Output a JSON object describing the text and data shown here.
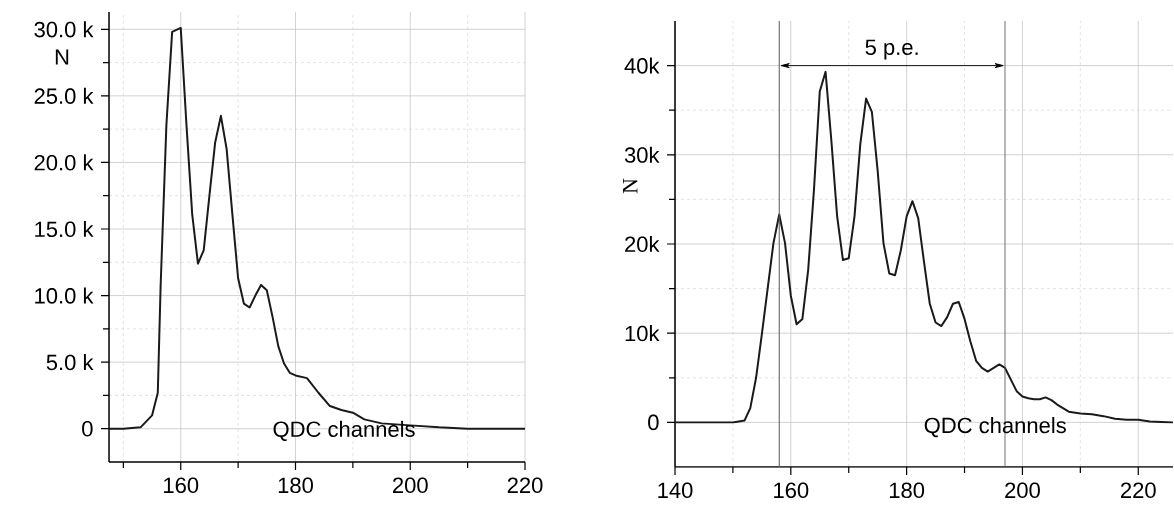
{
  "chart_data": [
    {
      "type": "line",
      "xlabel": "QDC channels",
      "ylabel": "N",
      "grid": true,
      "xlim": [
        147.5,
        220
      ],
      "ylim": [
        -2500,
        31300
      ],
      "xticks": [
        {
          "value": 150,
          "label": null
        },
        160,
        {
          "value": 170,
          "label": null
        },
        180,
        {
          "value": 190,
          "label": null
        },
        200,
        {
          "value": 210,
          "label": null
        },
        220
      ],
      "yticks": [
        0,
        {
          "value": 2500,
          "label": null
        },
        {
          "value": 5000,
          "label": "5.0 k"
        },
        {
          "value": 7500,
          "label": null
        },
        {
          "value": 10000,
          "label": "10.0 k"
        },
        {
          "value": 12500,
          "label": null
        },
        {
          "value": 15000,
          "label": "15.0 k"
        },
        {
          "value": 17500,
          "label": null
        },
        {
          "value": 20000,
          "label": "20.0 k"
        },
        {
          "value": 22500,
          "label": null
        },
        {
          "value": 25000,
          "label": "25.0 k"
        },
        {
          "value": 27500,
          "label": null
        },
        {
          "value": 30000,
          "label": "30.0 k"
        }
      ],
      "series": [
        {
          "color": "#1a1a1a",
          "x": [
            147.5,
            150,
            153,
            155,
            156,
            156.5,
            157.5,
            158.5,
            160,
            161,
            162,
            163,
            164,
            165,
            166,
            167,
            168,
            169,
            170,
            171,
            172,
            173,
            174,
            175,
            176,
            177,
            178,
            179,
            180,
            182,
            184,
            186,
            188,
            190,
            192,
            195,
            200,
            205,
            210,
            220
          ],
          "values": [
            0,
            0,
            100,
            1000,
            2700,
            10800,
            22800,
            29800,
            30100,
            22800,
            16100,
            12400,
            13400,
            17500,
            21500,
            23500,
            21000,
            16100,
            11300,
            9400,
            9100,
            10000,
            10800,
            10400,
            8400,
            6200,
            4900,
            4200,
            4000,
            3800,
            2700,
            1700,
            1400,
            1200,
            700,
            400,
            250,
            100,
            0,
            0
          ]
        }
      ]
    },
    {
      "type": "line",
      "xlabel": "QDC channels",
      "ylabel": "N",
      "grid": true,
      "xlim": [
        140,
        226
      ],
      "ylim": [
        -5000,
        45000
      ],
      "xticks": [
        140,
        {
          "value": 150,
          "label": null
        },
        160,
        {
          "value": 170,
          "label": null
        },
        180,
        {
          "value": 190,
          "label": null
        },
        200,
        {
          "value": 210,
          "label": null
        },
        220
      ],
      "yticks": [
        0,
        {
          "value": 5000,
          "label": null
        },
        {
          "value": 10000,
          "label": "10k"
        },
        {
          "value": 15000,
          "label": null
        },
        {
          "value": 20000,
          "label": "20k"
        },
        {
          "value": 25000,
          "label": null
        },
        {
          "value": 30000,
          "label": "30k"
        },
        {
          "value": 35000,
          "label": null
        },
        {
          "value": 40000,
          "label": "40k"
        }
      ],
      "ref_lines": [
        {
          "axis": "x",
          "value": 158
        },
        {
          "axis": "x",
          "value": 197
        }
      ],
      "annotations": [
        "5 p.e."
      ],
      "series": [
        {
          "color": "#1a1a1a",
          "x": [
            140,
            150,
            152,
            153,
            154,
            155,
            156,
            157,
            158,
            159,
            160,
            161,
            162,
            163,
            164,
            165,
            166,
            167,
            168,
            169,
            170,
            171,
            172,
            173,
            174,
            175,
            176,
            177,
            178,
            179,
            180,
            181,
            182,
            183,
            184,
            185,
            186,
            187,
            188,
            189,
            190,
            191,
            192,
            193,
            194,
            195,
            196,
            197,
            198,
            199,
            200,
            201,
            202,
            203,
            204,
            205,
            206,
            207,
            208,
            210,
            212,
            214,
            216,
            218,
            220,
            222,
            226
          ],
          "values": [
            0,
            0,
            200,
            1600,
            5000,
            9900,
            15000,
            20100,
            23300,
            20100,
            14200,
            11000,
            11600,
            17100,
            26100,
            37100,
            39300,
            31600,
            23100,
            18200,
            18400,
            23100,
            31200,
            36300,
            34800,
            28200,
            20100,
            16700,
            16500,
            19300,
            23100,
            24800,
            22900,
            18000,
            13300,
            11200,
            10800,
            11800,
            13300,
            13500,
            11600,
            9100,
            6900,
            6100,
            5700,
            6100,
            6500,
            6100,
            4800,
            3500,
            2900,
            2700,
            2600,
            2600,
            2800,
            2500,
            2000,
            1600,
            1200,
            1000,
            900,
            700,
            400,
            300,
            300,
            100,
            0
          ]
        }
      ]
    }
  ]
}
